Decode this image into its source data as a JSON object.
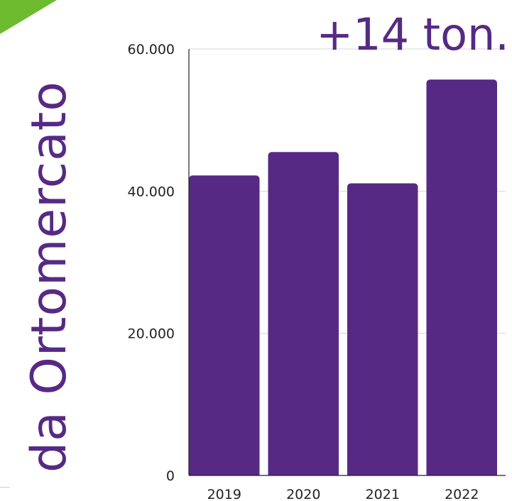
{
  "colors": {
    "bar": "#562a84",
    "accent_triangle": "#6dbb2e",
    "title_text": "#562a84",
    "gridline": "#d6d6d6",
    "axis": "#222222"
  },
  "vertical_title": "da Ortomercato",
  "headline": "+14 ton.",
  "chart_data": {
    "type": "bar",
    "title": "",
    "xlabel": "",
    "ylabel": "",
    "categories": [
      "2019",
      "2020",
      "2021",
      "2022"
    ],
    "values": [
      42200,
      45500,
      41100,
      55700
    ],
    "ylim": [
      0,
      60000
    ],
    "yticks": [
      0,
      20000,
      40000,
      60000
    ],
    "ytick_labels": [
      "0",
      "20.000",
      "40.000",
      "60.000"
    ],
    "grid": true,
    "legend": "none"
  }
}
